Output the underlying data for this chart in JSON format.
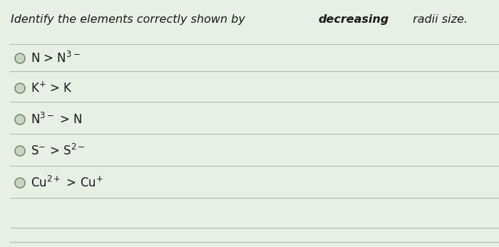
{
  "background_color": "#e8efe5",
  "line_color": "#aab8a5",
  "circle_edge_color": "#7a8a7a",
  "circle_face_color": "#c8d8c0",
  "text_color": "#1a1a1a",
  "title_italic": "Identify the elements correctly shown by ",
  "title_bold_italic": "decreasing",
  "title_end": " radii size.",
  "option_texts": [
    "N > N$^{3-}$",
    "K$^{+}$ > K",
    "N$^{3-}$ > N",
    "S$^{-}$ > S$^{2-}$",
    "Cu$^{2+}$ > Cu$^{+}$"
  ],
  "fig_width": 7.0,
  "fig_height": 3.47,
  "dpi": 100,
  "title_fontsize": 11.5,
  "option_fontsize": 12
}
